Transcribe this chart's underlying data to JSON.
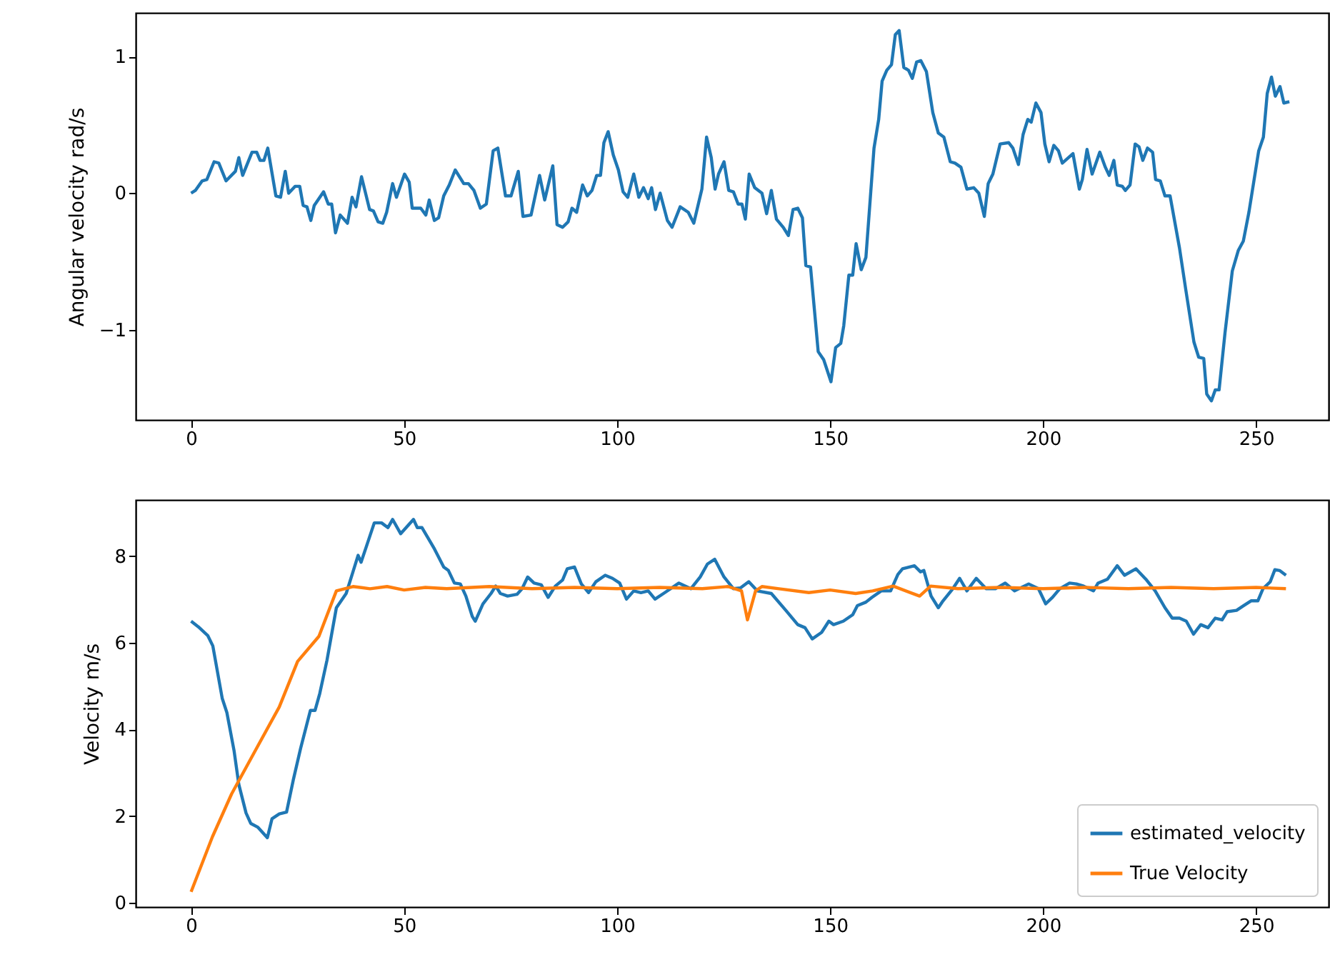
{
  "chart_data": [
    {
      "type": "line",
      "ylabel": "Angular velocity rad/s",
      "xlim": [
        -13,
        267
      ],
      "xticks": [
        0,
        50,
        100,
        150,
        200,
        250
      ],
      "ylim": [
        -1.66,
        1.32
      ],
      "yticks": [
        {
          "value": -1,
          "label": "−1"
        },
        0,
        1
      ],
      "grid": false,
      "legend": false,
      "series": [
        {
          "color": "#1f77b4",
          "x": [
            0,
            1,
            2.6,
            3.7,
            5.4,
            6.5,
            8.2,
            10.4,
            11.2,
            12.1,
            14.3,
            15.4,
            16.2,
            17.1,
            18,
            19.9,
            21,
            22.1,
            22.9,
            24.4,
            25.5,
            26.3,
            27.2,
            28.1,
            28.9,
            31.1,
            32.2,
            33,
            33.9,
            35,
            36.7,
            37.8,
            38.7,
            40,
            41.9,
            42.8,
            43.9,
            45,
            45.9,
            47.3,
            48.2,
            50.1,
            51.2,
            51.9,
            53.9,
            55.1,
            55.9,
            57.1,
            58.1,
            59.3,
            60.6,
            62,
            64,
            65.1,
            66.4,
            67.9,
            69.3,
            70.9,
            72,
            73.8,
            75.1,
            76.8,
            77.9,
            79.8,
            81.8,
            83,
            84.9,
            85.9,
            87.2,
            88.5,
            89.4,
            90.5,
            91.9,
            93,
            94.1,
            95.2,
            96.1,
            96.9,
            97.9,
            99.1,
            100.3,
            101.4,
            102.5,
            103.9,
            105.1,
            106.2,
            107.3,
            108.1,
            109,
            110.1,
            111.8,
            112.9,
            114.8,
            116.7,
            118,
            119.9,
            121,
            122.1,
            123,
            123.8,
            125.1,
            126.2,
            127.3,
            128.4,
            129.3,
            130.1,
            131,
            132.3,
            134,
            135.1,
            136.2,
            137.4,
            139,
            140.2,
            141.3,
            142.4,
            143.5,
            144.3,
            145.4,
            146.3,
            147.2,
            148.5,
            150.2,
            151.3,
            152.5,
            153.2,
            154.4,
            155.3,
            156.1,
            157.3,
            158.4,
            160.3,
            161.4,
            162.2,
            163.3,
            164.4,
            165.3,
            166.2,
            167.3,
            168.4,
            169.3,
            170.3,
            171.3,
            172.6,
            174.1,
            175.4,
            176.7,
            178.2,
            179.3,
            180.7,
            182.1,
            183.7,
            184.9,
            186.2,
            187.1,
            188.2,
            189.9,
            191.9,
            192.9,
            194.2,
            195.3,
            196.4,
            197.2,
            198.3,
            199.5,
            200.4,
            201.4,
            202.5,
            203.6,
            204.5,
            207,
            208.5,
            209.2,
            210.3,
            211.5,
            213.3,
            214.6,
            215.5,
            216.6,
            217.4,
            218.6,
            219.3,
            220.4,
            221.6,
            222.5,
            223.4,
            224.5,
            225.7,
            226.4,
            227.5,
            228.6,
            229.8,
            232,
            233.5,
            235.4,
            236.5,
            237.7,
            238.4,
            239.5,
            240.4,
            241.3,
            242.7,
            244.4,
            245.8,
            247,
            248.3,
            250.6,
            251.7,
            252.6,
            253.6,
            254.5,
            255.6,
            256.5,
            257.8
          ],
          "values": [
            0,
            0.02,
            0.09,
            0.1,
            0.23,
            0.22,
            0.09,
            0.16,
            0.26,
            0.13,
            0.3,
            0.3,
            0.24,
            0.24,
            0.33,
            -0.02,
            -0.03,
            0.16,
            0,
            0.05,
            0.05,
            -0.09,
            -0.1,
            -0.2,
            -0.09,
            0.01,
            -0.08,
            -0.08,
            -0.29,
            -0.16,
            -0.22,
            -0.03,
            -0.1,
            0.12,
            -0.12,
            -0.13,
            -0.21,
            -0.22,
            -0.14,
            0.07,
            -0.03,
            0.14,
            0.08,
            -0.11,
            -0.11,
            -0.16,
            -0.05,
            -0.2,
            -0.18,
            -0.02,
            0.06,
            0.17,
            0.07,
            0.07,
            0.02,
            -0.11,
            -0.08,
            0.31,
            0.33,
            -0.02,
            -0.02,
            0.16,
            -0.17,
            -0.16,
            0.13,
            -0.05,
            0.2,
            -0.23,
            -0.25,
            -0.21,
            -0.11,
            -0.14,
            0.06,
            -0.02,
            0.02,
            0.13,
            0.13,
            0.37,
            0.45,
            0.28,
            0.17,
            0.01,
            -0.03,
            0.14,
            -0.03,
            0.04,
            -0.04,
            0.04,
            -0.12,
            0,
            -0.2,
            -0.25,
            -0.1,
            -0.14,
            -0.22,
            0.03,
            0.41,
            0.26,
            0.03,
            0.14,
            0.23,
            0.02,
            0.01,
            -0.08,
            -0.08,
            -0.19,
            0.14,
            0.04,
            0,
            -0.15,
            0.02,
            -0.19,
            -0.25,
            -0.31,
            -0.12,
            -0.11,
            -0.18,
            -0.53,
            -0.54,
            -0.85,
            -1.16,
            -1.22,
            -1.38,
            -1.13,
            -1.1,
            -0.97,
            -0.6,
            -0.6,
            -0.37,
            -0.56,
            -0.47,
            0.33,
            0.54,
            0.82,
            0.9,
            0.94,
            1.16,
            1.19,
            0.92,
            0.9,
            0.84,
            0.96,
            0.97,
            0.89,
            0.59,
            0.44,
            0.41,
            0.23,
            0.22,
            0.19,
            0.03,
            0.04,
            0,
            -0.17,
            0.07,
            0.14,
            0.36,
            0.37,
            0.33,
            0.21,
            0.43,
            0.54,
            0.52,
            0.66,
            0.59,
            0.36,
            0.23,
            0.35,
            0.31,
            0.22,
            0.29,
            0.03,
            0.1,
            0.32,
            0.14,
            0.3,
            0.19,
            0.13,
            0.24,
            0.06,
            0.05,
            0.02,
            0.06,
            0.36,
            0.34,
            0.24,
            0.33,
            0.3,
            0.1,
            0.09,
            -0.02,
            -0.02,
            -0.4,
            -0.71,
            -1.09,
            -1.2,
            -1.21,
            -1.47,
            -1.52,
            -1.44,
            -1.44,
            -1.02,
            -0.57,
            -0.42,
            -0.35,
            -0.14,
            0.31,
            0.41,
            0.73,
            0.85,
            0.71,
            0.78,
            0.66,
            0.67
          ]
        }
      ]
    },
    {
      "type": "line",
      "ylabel": "Velocity m/s",
      "xlim": [
        -13,
        267
      ],
      "xticks": [
        0,
        50,
        100,
        150,
        200,
        250
      ],
      "ylim": [
        -0.1,
        9.3
      ],
      "yticks": [
        0,
        2,
        4,
        6,
        8
      ],
      "grid": false,
      "legend": "bottom right",
      "series": [
        {
          "name": "estimated_velocity",
          "color": "#1f77b4",
          "x": [
            0,
            1.7,
            3.9,
            5.1,
            7.3,
            8.4,
            10.1,
            11.2,
            12.9,
            14,
            15.7,
            17.9,
            19,
            20.7,
            22.4,
            24,
            25.7,
            28,
            29.1,
            30.2,
            31.9,
            34.1,
            36.4,
            38,
            39.2,
            39.9,
            41.4,
            43,
            44.7,
            46.2,
            47.3,
            49.2,
            52.2,
            53.1,
            54.2,
            57,
            59.3,
            60.4,
            61.8,
            63.2,
            64.5,
            66,
            66.7,
            68.5,
            70.4,
            71.5,
            72.6,
            74.3,
            76.5,
            77.7,
            79,
            80.5,
            82.2,
            83.8,
            85.5,
            87.2,
            88.3,
            90,
            91.6,
            93.3,
            95,
            97.2,
            98.9,
            100.6,
            102.2,
            103.9,
            105.6,
            107.3,
            108.9,
            111.2,
            114.5,
            117.3,
            119.5,
            121.2,
            122.9,
            125.1,
            127.3,
            129,
            130.9,
            132.9,
            136.2,
            139.6,
            142.4,
            144.1,
            145.8,
            148,
            149.7,
            150.8,
            153.1,
            155.3,
            156.4,
            158.4,
            159.8,
            162,
            164.2,
            165.9,
            167,
            169.8,
            171.2,
            172,
            173.7,
            175.4,
            176.5,
            178.8,
            180.4,
            182.1,
            184.3,
            186.6,
            188.8,
            191.1,
            193.3,
            196.6,
            198.9,
            200.6,
            202.2,
            203.9,
            206.2,
            207.8,
            209.5,
            211.8,
            212.9,
            215.1,
            217.4,
            219.1,
            221.8,
            224.1,
            226.3,
            228.6,
            230.3,
            232,
            233.6,
            235.3,
            237,
            238.7,
            240.4,
            242,
            243.2,
            245.4,
            247.1,
            248.8,
            250.4,
            251.6,
            253.3,
            254.4,
            255.5,
            257
          ],
          "values": [
            6.5,
            6.37,
            6.17,
            5.93,
            4.72,
            4.39,
            3.5,
            2.73,
            2.07,
            1.83,
            1.74,
            1.5,
            1.94,
            2.05,
            2.09,
            2.84,
            3.56,
            4.44,
            4.44,
            4.83,
            5.6,
            6.81,
            7.14,
            7.64,
            8.02,
            7.86,
            8.3,
            8.77,
            8.77,
            8.66,
            8.85,
            8.52,
            8.85,
            8.66,
            8.66,
            8.19,
            7.75,
            7.67,
            7.38,
            7.36,
            7.08,
            6.61,
            6.5,
            6.9,
            7.14,
            7.31,
            7.14,
            7.08,
            7.12,
            7.25,
            7.52,
            7.38,
            7.34,
            7.05,
            7.31,
            7.45,
            7.71,
            7.75,
            7.36,
            7.16,
            7.41,
            7.56,
            7.49,
            7.38,
            7.01,
            7.2,
            7.16,
            7.2,
            7.01,
            7.16,
            7.38,
            7.25,
            7.52,
            7.82,
            7.93,
            7.52,
            7.25,
            7.27,
            7.41,
            7.2,
            7.14,
            6.75,
            6.42,
            6.35,
            6.09,
            6.24,
            6.5,
            6.42,
            6.5,
            6.65,
            6.86,
            6.94,
            7.05,
            7.2,
            7.2,
            7.58,
            7.71,
            7.78,
            7.64,
            7.67,
            7.08,
            6.81,
            6.97,
            7.25,
            7.49,
            7.2,
            7.49,
            7.25,
            7.25,
            7.38,
            7.2,
            7.36,
            7.25,
            6.9,
            7.05,
            7.25,
            7.38,
            7.36,
            7.31,
            7.2,
            7.38,
            7.47,
            7.78,
            7.56,
            7.71,
            7.47,
            7.2,
            6.81,
            6.57,
            6.57,
            6.5,
            6.2,
            6.42,
            6.35,
            6.57,
            6.53,
            6.72,
            6.75,
            6.86,
            6.97,
            6.97,
            7.25,
            7.41,
            7.69,
            7.67,
            7.56
          ]
        },
        {
          "name": "True Velocity",
          "color": "#ff7f0e",
          "x": [
            0,
            5,
            9.5,
            15,
            20.7,
            25,
            30,
            34.1,
            38,
            42,
            46,
            50,
            55,
            60,
            70,
            80,
            90,
            100,
            110,
            120,
            126,
            129.2,
            130.6,
            132.5,
            134,
            138,
            145,
            150,
            156,
            160,
            164.8,
            171,
            173.6,
            180,
            190,
            200,
            210,
            220,
            230,
            240,
            250,
            257
          ],
          "values": [
            0.25,
            1.52,
            2.51,
            3.5,
            4.52,
            5.57,
            6.15,
            7.2,
            7.3,
            7.25,
            7.3,
            7.22,
            7.28,
            7.25,
            7.3,
            7.25,
            7.28,
            7.25,
            7.28,
            7.25,
            7.3,
            7.2,
            6.53,
            7.2,
            7.3,
            7.25,
            7.16,
            7.22,
            7.14,
            7.2,
            7.31,
            7.08,
            7.31,
            7.25,
            7.28,
            7.25,
            7.28,
            7.25,
            7.28,
            7.25,
            7.28,
            7.25
          ]
        }
      ]
    }
  ]
}
